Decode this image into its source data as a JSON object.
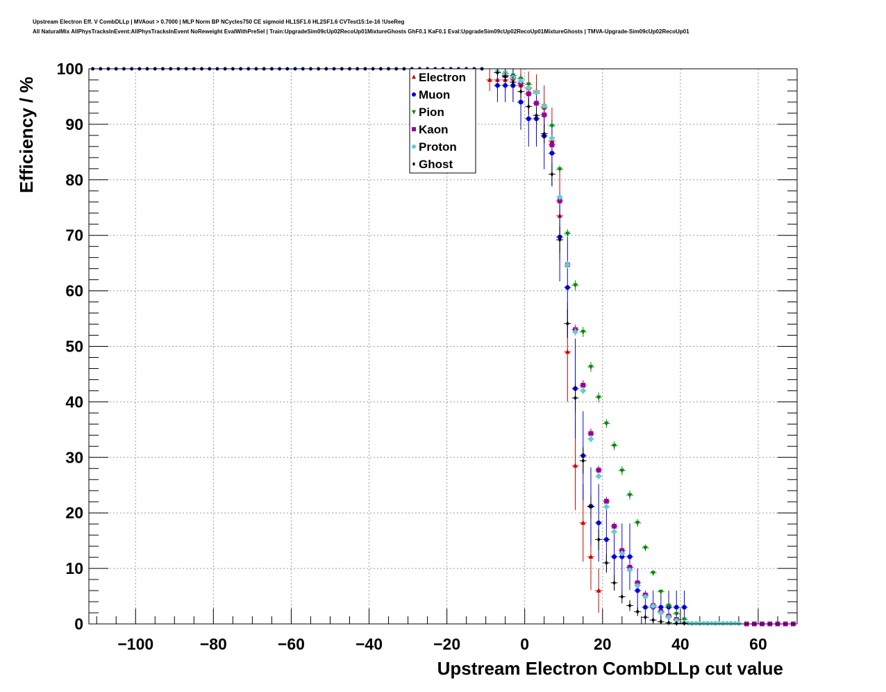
{
  "title": {
    "line1": "Upstream Electron Eff. V CombDLLp | MVAout > 0.7000 | MLP Norm BP NCycles750 CE sigmoid HL1SF1.6 HL2SF1.6 CVTest15:1e-16 !UseReg",
    "line2": "All NaturalMix AllPhysTracksInEvent:AllPhysTracksInEvent NoReweight EvalWithPreSel | Train:UpgradeSim09cUp02RecoUp01MixtureGhosts GhF0.1 KaF0.1 Eval:UpgradeSim09cUp02RecoUp01MixtureGhosts | TMVA-Upgrade-Sim09cUp02RecoUp01"
  },
  "chart_data": {
    "type": "scatter",
    "xlabel": "Upstream Electron CombDLLp cut value",
    "ylabel": "Efficiency / %",
    "xlim": [
      -112,
      70
    ],
    "ylim": [
      0,
      100
    ],
    "xticks": [
      -100,
      -80,
      -60,
      -40,
      -20,
      0,
      20,
      40,
      60
    ],
    "xtick_labels": [
      "−100",
      "−80",
      "−60",
      "−40",
      "−20",
      "0",
      "20",
      "40",
      "60"
    ],
    "yticks": [
      0,
      10,
      20,
      30,
      40,
      50,
      60,
      70,
      80,
      90,
      100
    ],
    "ytick_labels": [
      "0",
      "10",
      "20",
      "30",
      "40",
      "50",
      "60",
      "70",
      "80",
      "90",
      "100"
    ],
    "grid": true,
    "legend_position": "top-center",
    "plateau": {
      "x_start": -111,
      "x_end": -10,
      "step": 2,
      "value": 100
    },
    "tail": {
      "x_start": 42,
      "x_end": 55,
      "step": 2,
      "value": 0
    },
    "series": [
      {
        "name": "Electron",
        "color": "#cc0000",
        "marker": "triangle-up",
        "points": [
          [
            -9,
            98
          ],
          [
            -7,
            98
          ],
          [
            -5,
            98
          ],
          [
            -3,
            97
          ],
          [
            -1,
            97
          ],
          [
            1,
            96.5
          ],
          [
            3,
            96
          ],
          [
            5,
            93
          ],
          [
            7,
            87
          ],
          [
            9,
            73.5
          ],
          [
            11,
            49
          ],
          [
            13,
            28.5
          ],
          [
            15,
            18.2
          ],
          [
            17,
            12.1
          ],
          [
            19,
            6
          ]
        ],
        "errors": [
          2,
          2,
          2,
          3,
          3,
          3,
          3,
          4,
          6,
          8,
          9,
          8,
          7,
          6,
          4
        ]
      },
      {
        "name": "Muon",
        "color": "#0000dd",
        "marker": "circle",
        "points": [
          [
            -7,
            97
          ],
          [
            -5,
            97
          ],
          [
            -3,
            97
          ],
          [
            -1,
            94
          ],
          [
            1,
            91
          ],
          [
            3,
            91
          ],
          [
            5,
            87.9
          ],
          [
            7,
            84.8
          ],
          [
            9,
            69.7
          ],
          [
            11,
            60.6
          ],
          [
            13,
            42.4
          ],
          [
            15,
            30.3
          ],
          [
            17,
            21.2
          ],
          [
            19,
            18.2
          ],
          [
            21,
            15.2
          ],
          [
            23,
            12.1
          ],
          [
            25,
            12.1
          ],
          [
            27,
            12.1
          ],
          [
            29,
            6
          ],
          [
            31,
            3
          ],
          [
            33,
            3
          ],
          [
            35,
            3
          ],
          [
            37,
            3
          ],
          [
            39,
            3
          ],
          [
            41,
            3
          ]
        ],
        "errors": [
          3,
          3,
          3,
          5,
          5,
          5,
          6,
          6,
          8,
          9,
          9,
          8,
          7,
          7,
          6,
          6,
          6,
          6,
          4,
          3,
          3,
          3,
          3,
          3,
          3
        ]
      },
      {
        "name": "Pion",
        "color": "#008800",
        "marker": "triangle-down",
        "points": [
          [
            -5,
            99.2
          ],
          [
            -3,
            98.8
          ],
          [
            -1,
            98.2
          ],
          [
            1,
            97.2
          ],
          [
            3,
            95.6
          ],
          [
            5,
            93.3
          ],
          [
            7,
            89.7
          ],
          [
            9,
            81.9
          ],
          [
            11,
            70.3
          ],
          [
            13,
            61
          ],
          [
            15,
            52.6
          ],
          [
            17,
            46.3
          ],
          [
            19,
            40.8
          ],
          [
            21,
            36.1
          ],
          [
            23,
            32.1
          ],
          [
            25,
            27.6
          ],
          [
            27,
            23.2
          ],
          [
            29,
            18.2
          ],
          [
            31,
            13.7
          ],
          [
            33,
            9.2
          ],
          [
            35,
            5.8
          ],
          [
            37,
            3.3
          ],
          [
            39,
            1.8
          ],
          [
            41,
            0.8
          ]
        ],
        "errors": [
          0.3,
          0.3,
          0.3,
          0.4,
          0.5,
          0.5,
          0.6,
          0.7,
          0.8,
          0.9,
          0.9,
          0.9,
          0.9,
          0.8,
          0.8,
          0.8,
          0.8,
          0.7,
          0.6,
          0.5,
          0.4,
          0.3,
          0.3,
          0.2
        ]
      },
      {
        "name": "Kaon",
        "color": "#990099",
        "marker": "square",
        "points": [
          [
            -5,
            98.8
          ],
          [
            -3,
            98.3
          ],
          [
            -1,
            97.4
          ],
          [
            1,
            95.5
          ],
          [
            3,
            93.8
          ],
          [
            5,
            91.7
          ],
          [
            7,
            86.3
          ],
          [
            9,
            76.2
          ],
          [
            11,
            64.7
          ],
          [
            13,
            53
          ],
          [
            15,
            43
          ],
          [
            17,
            34.3
          ],
          [
            19,
            27.7
          ],
          [
            21,
            22.1
          ],
          [
            23,
            17.6
          ],
          [
            25,
            13.2
          ],
          [
            27,
            10.2
          ],
          [
            29,
            7.4
          ],
          [
            31,
            5.2
          ],
          [
            33,
            3.3
          ],
          [
            35,
            2.2
          ],
          [
            37,
            1.4
          ],
          [
            39,
            0.8
          ],
          [
            57,
            0
          ],
          [
            59,
            0
          ],
          [
            61,
            0
          ],
          [
            63,
            0
          ],
          [
            65,
            0
          ],
          [
            67,
            0
          ],
          [
            69,
            0
          ]
        ],
        "errors": [
          0.3,
          0.3,
          0.3,
          0.4,
          0.5,
          0.5,
          0.6,
          0.7,
          0.8,
          0.9,
          0.9,
          0.9,
          0.8,
          0.8,
          0.7,
          0.7,
          0.6,
          0.5,
          0.5,
          0.4,
          0.3,
          0.3,
          0.2,
          0.2,
          0.2,
          0.2,
          0.2,
          0.2,
          0.2,
          0.2
        ]
      },
      {
        "name": "Proton",
        "color": "#66cccc",
        "marker": "cross",
        "points": [
          [
            -7,
            99.5
          ],
          [
            -5,
            99.1
          ],
          [
            -3,
            98.4
          ],
          [
            -1,
            97.8
          ],
          [
            1,
            96.6
          ],
          [
            3,
            95.8
          ],
          [
            5,
            93.3
          ],
          [
            7,
            87.5
          ],
          [
            9,
            76.9
          ],
          [
            11,
            64.7
          ],
          [
            13,
            52.6
          ],
          [
            15,
            42
          ],
          [
            17,
            33.3
          ],
          [
            19,
            26.6
          ],
          [
            21,
            21.1
          ],
          [
            23,
            16.6
          ],
          [
            25,
            12.7
          ],
          [
            27,
            9.7
          ],
          [
            29,
            6.9
          ],
          [
            31,
            4.9
          ],
          [
            33,
            3.2
          ],
          [
            35,
            2
          ],
          [
            37,
            1.2
          ],
          [
            39,
            0.6
          ],
          [
            41,
            0.3
          ],
          [
            43,
            0.1
          ],
          [
            45,
            0.1
          ],
          [
            47,
            0.1
          ],
          [
            49,
            0.1
          ],
          [
            51,
            0.1
          ],
          [
            53,
            0.1
          ],
          [
            55,
            0.1
          ]
        ],
        "errors": [
          0.2,
          0.2,
          0.2,
          0.3,
          0.3,
          0.4,
          0.4,
          0.5,
          0.6,
          0.7,
          0.7,
          0.7,
          0.7,
          0.6,
          0.6,
          0.5,
          0.5,
          0.4,
          0.4,
          0.3,
          0.3,
          0.2,
          0.2,
          0.2,
          0.1,
          0.1,
          0.1,
          0.1,
          0.1,
          0.1,
          0.1,
          0.1
        ]
      },
      {
        "name": "Ghost",
        "color": "#000000",
        "marker": "diamond",
        "points": [
          [
            -7,
            99.3
          ],
          [
            -5,
            98.6
          ],
          [
            -3,
            97.6
          ],
          [
            -1,
            95.9
          ],
          [
            1,
            93.2
          ],
          [
            3,
            91.6
          ],
          [
            5,
            88.3
          ],
          [
            7,
            81
          ],
          [
            9,
            69.2
          ],
          [
            11,
            54.1
          ],
          [
            13,
            40.7
          ],
          [
            15,
            29.4
          ],
          [
            17,
            21.1
          ],
          [
            19,
            15.2
          ],
          [
            21,
            11
          ],
          [
            23,
            7.4
          ],
          [
            25,
            4.9
          ],
          [
            27,
            3.3
          ],
          [
            29,
            2.2
          ],
          [
            31,
            1.2
          ],
          [
            33,
            0.7
          ],
          [
            35,
            0.4
          ],
          [
            37,
            0.2
          ],
          [
            39,
            0.1
          ],
          [
            41,
            0.1
          ]
        ],
        "errors": [
          0.6,
          0.8,
          1,
          1.2,
          1.4,
          1.5,
          1.7,
          2,
          2.4,
          2.6,
          2.6,
          2.4,
          2.1,
          1.9,
          1.6,
          1.4,
          1.2,
          1,
          0.8,
          0.6,
          0.5,
          0.4,
          0.3,
          0.2,
          0.2
        ]
      }
    ]
  }
}
